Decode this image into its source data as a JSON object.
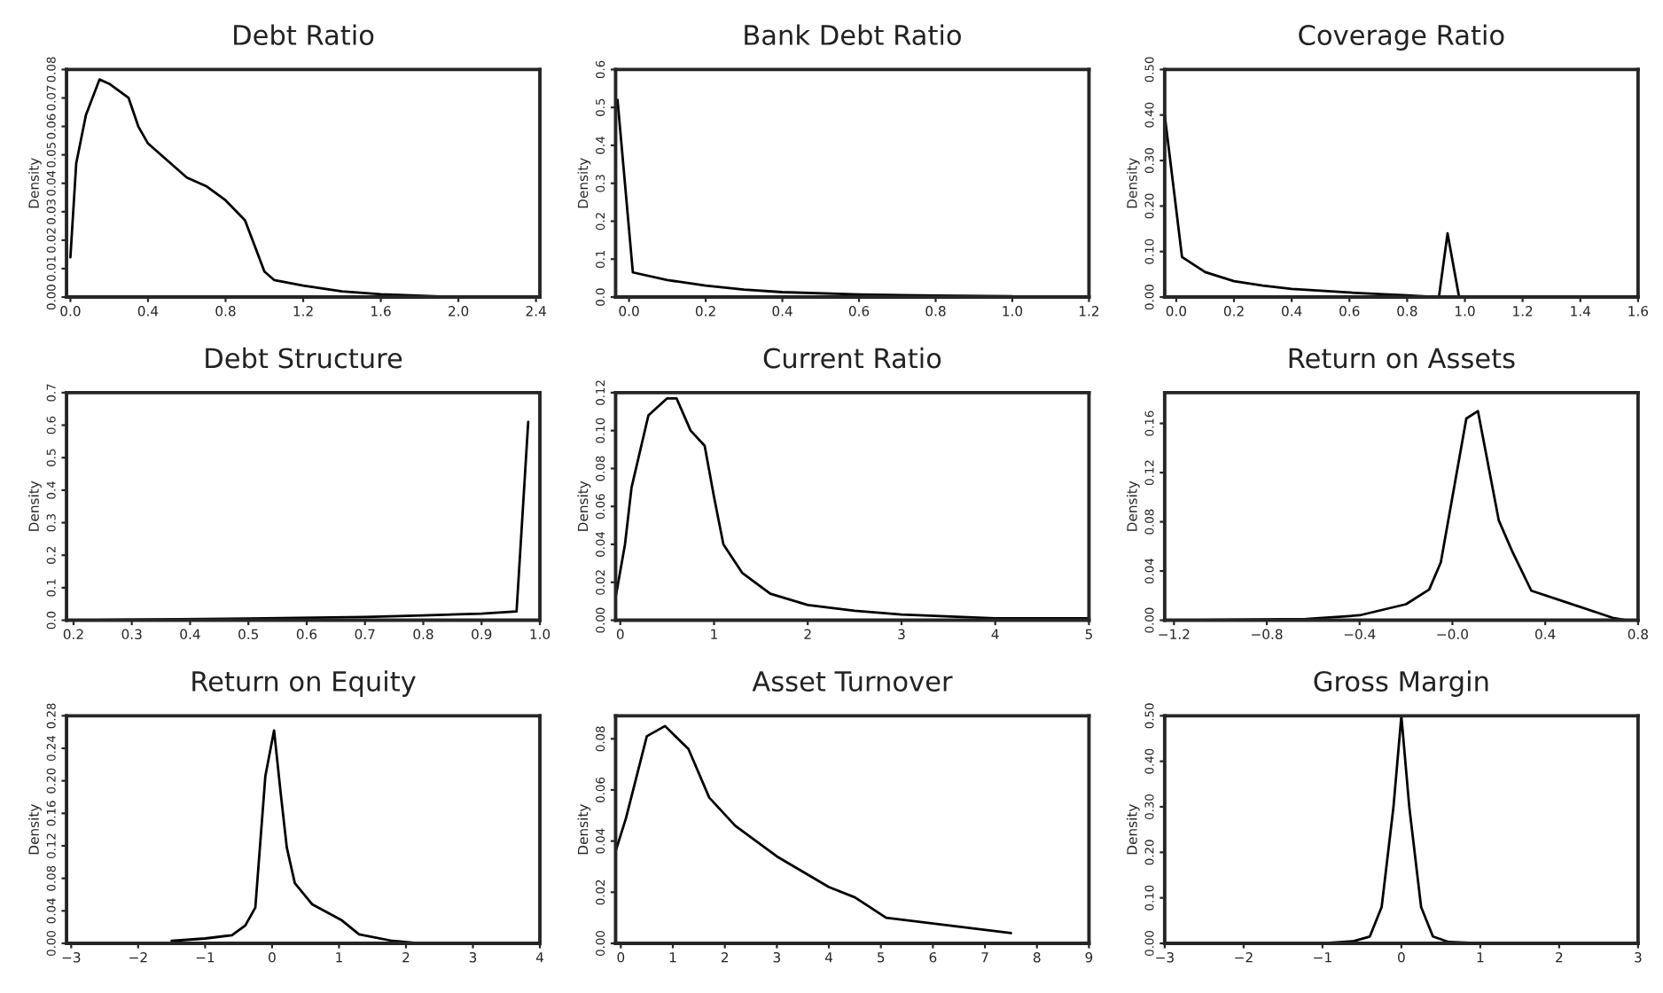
{
  "chart_data": [
    {
      "type": "line",
      "title": "Debt Ratio",
      "ylabel": "Density",
      "xlim": [
        -0.02,
        2.42
      ],
      "ylim": [
        0,
        0.08
      ],
      "xticks": [
        {
          "value": 0,
          "label": "0.0"
        },
        0.4,
        0.8,
        1.2,
        1.6,
        {
          "value": 2,
          "label": "2.0"
        },
        2.4
      ],
      "yticks": [
        {
          "value": 0,
          "label": "0.00"
        },
        0.01,
        0.02,
        0.03,
        0.04,
        0.05,
        0.06,
        0.07,
        0.08
      ],
      "series": [
        {
          "color": "#000000",
          "x": [
            0,
            0.03,
            0.08,
            0.15,
            0.2,
            0.3,
            0.35,
            0.4,
            0.5,
            0.6,
            0.7,
            0.8,
            0.9,
            0.95,
            1.0,
            1.05,
            1.2,
            1.4,
            1.6,
            2.0,
            2.4
          ],
          "values": [
            0.014,
            0.047,
            0.064,
            0.0765,
            0.075,
            0.07,
            0.06,
            0.054,
            0.048,
            0.042,
            0.039,
            0.034,
            0.027,
            0.018,
            0.009,
            0.006,
            0.004,
            0.002,
            0.001,
            0.0,
            0
          ]
        }
      ]
    },
    {
      "type": "line",
      "title": "Bank Debt Ratio",
      "ylabel": "Density",
      "xlim": [
        -0.035,
        1.2
      ],
      "ylim": [
        0,
        0.6
      ],
      "xticks": [
        {
          "value": 0,
          "label": "0.0"
        },
        0.2,
        0.4,
        0.6,
        0.8,
        {
          "value": 1,
          "label": "1.0"
        },
        1.2
      ],
      "yticks": [
        {
          "value": 0,
          "label": "0.0"
        },
        0.1,
        0.2,
        0.3,
        0.4,
        0.5,
        0.6
      ],
      "series": [
        {
          "color": "#000000",
          "x": [
            -0.03,
            0.01,
            0.1,
            0.2,
            0.3,
            0.4,
            0.6,
            0.8,
            1.0
          ],
          "values": [
            0.52,
            0.065,
            0.045,
            0.03,
            0.02,
            0.013,
            0.007,
            0.004,
            0.002
          ]
        }
      ]
    },
    {
      "type": "line",
      "title": "Coverage Ratio",
      "ylabel": "Density",
      "xlim": [
        -0.04,
        1.6
      ],
      "ylim": [
        0,
        0.5
      ],
      "xticks": [
        {
          "value": 0,
          "label": "0.0"
        },
        0.2,
        0.4,
        0.6,
        0.8,
        {
          "value": 1,
          "label": "1.0"
        },
        1.2,
        1.4,
        1.6
      ],
      "yticks": [
        {
          "value": 0,
          "label": "0.00"
        },
        {
          "value": 0.1,
          "label": "0.10"
        },
        {
          "value": 0.2,
          "label": "0.20"
        },
        {
          "value": 0.3,
          "label": "0.30"
        },
        {
          "value": 0.4,
          "label": "0.40"
        },
        {
          "value": 0.5,
          "label": "0.50"
        }
      ],
      "series": [
        {
          "color": "#000000",
          "x": [
            -0.04,
            0.02,
            0.1,
            0.2,
            0.3,
            0.4,
            0.6,
            0.8,
            0.91,
            0.94,
            0.98,
            1.6
          ],
          "values": [
            0.4,
            0.088,
            0.055,
            0.035,
            0.025,
            0.018,
            0.01,
            0.004,
            0.0,
            0.14,
            0.0,
            0.0
          ]
        }
      ]
    },
    {
      "type": "line",
      "title": "Debt Structure",
      "ylabel": "Density",
      "xlim": [
        0.188,
        1.0
      ],
      "ylim": [
        0,
        0.7
      ],
      "xticks": [
        0.2,
        0.3,
        0.4,
        0.5,
        0.6,
        0.7,
        0.8,
        0.9,
        {
          "value": 1,
          "label": "1.0"
        }
      ],
      "yticks": [
        {
          "value": 0,
          "label": "0.0"
        },
        0.1,
        0.2,
        0.3,
        0.4,
        0.5,
        0.6,
        0.7
      ],
      "series": [
        {
          "color": "#000000",
          "x": [
            0.2,
            0.3,
            0.5,
            0.7,
            0.8,
            0.9,
            0.96,
            0.98
          ],
          "values": [
            0.0,
            0.002,
            0.005,
            0.01,
            0.015,
            0.02,
            0.027,
            0.61
          ]
        }
      ]
    },
    {
      "type": "line",
      "title": "Current Ratio",
      "ylabel": "Density",
      "xlim": [
        -0.05,
        5
      ],
      "ylim": [
        0,
        0.12
      ],
      "xticks": [
        0,
        1,
        2,
        3,
        4,
        5
      ],
      "yticks": [
        {
          "value": 0,
          "label": "0.00"
        },
        0.02,
        0.04,
        0.06,
        0.08,
        {
          "value": 0.1,
          "label": "0.10"
        },
        0.12
      ],
      "series": [
        {
          "color": "#000000",
          "x": [
            -0.05,
            0.05,
            0.12,
            0.3,
            0.5,
            0.6,
            0.75,
            0.9,
            1.0,
            1.1,
            1.3,
            1.6,
            2.0,
            2.5,
            3,
            4,
            5
          ],
          "values": [
            0.012,
            0.04,
            0.07,
            0.108,
            0.117,
            0.117,
            0.1,
            0.092,
            0.065,
            0.04,
            0.025,
            0.014,
            0.008,
            0.005,
            0.003,
            0.001,
            0.001
          ]
        }
      ]
    },
    {
      "type": "line",
      "title": "Return on Assets",
      "ylabel": "Density",
      "xlim": [
        -1.24,
        0.8
      ],
      "ylim": [
        0,
        0.185
      ],
      "xticks": [
        {
          "value": -1.2,
          "label": "−1.2"
        },
        {
          "value": -0.8,
          "label": "−0.8"
        },
        {
          "value": -0.4,
          "label": "−0.4"
        },
        {
          "value": 0,
          "label": "−0.0"
        },
        0.4,
        0.8
      ],
      "yticks": [
        {
          "value": 0,
          "label": "0.00"
        },
        0.04,
        0.08,
        0.12,
        0.16
      ],
      "series": [
        {
          "color": "#000000",
          "x": [
            -1.2,
            -0.63,
            -0.4,
            -0.2,
            -0.1,
            -0.05,
            0.06,
            0.11,
            0.2,
            0.26,
            0.34,
            0.5,
            0.69,
            0.75
          ],
          "values": [
            0,
            0.001,
            0.004,
            0.013,
            0.025,
            0.047,
            0.164,
            0.17,
            0.081,
            0.055,
            0.024,
            0.014,
            0.002,
            0
          ]
        }
      ]
    },
    {
      "type": "line",
      "title": "Return on Equity",
      "ylabel": "Density",
      "xlim": [
        -3.07,
        4
      ],
      "ylim": [
        0,
        0.28
      ],
      "xticks": [
        {
          "value": -3,
          "label": "−3"
        },
        {
          "value": -2,
          "label": "−2"
        },
        {
          "value": -1,
          "label": "−1"
        },
        0,
        1,
        2,
        3,
        4
      ],
      "yticks": [
        {
          "value": 0,
          "label": "0.00"
        },
        0.04,
        0.08,
        0.12,
        0.16,
        {
          "value": 0.2,
          "label": "0.20"
        },
        0.24,
        0.28
      ],
      "series": [
        {
          "color": "#000000",
          "x": [
            -1.5,
            -1,
            -0.6,
            -0.4,
            -0.25,
            -0.1,
            0.03,
            0.13,
            0.22,
            0.34,
            0.6,
            1.03,
            1.3,
            1.8,
            2.2
          ],
          "values": [
            0.003,
            0.006,
            0.01,
            0.022,
            0.044,
            0.206,
            0.262,
            0.184,
            0.118,
            0.074,
            0.048,
            0.029,
            0.011,
            0.003,
            0
          ]
        }
      ]
    },
    {
      "type": "line",
      "title": "Asset Turnover",
      "ylabel": "Density",
      "xlim": [
        -0.1,
        9
      ],
      "ylim": [
        0,
        0.089
      ],
      "xticks": [
        0,
        1,
        2,
        3,
        4,
        5,
        6,
        7,
        8,
        9
      ],
      "yticks": [
        {
          "value": 0,
          "label": "0.00"
        },
        0.02,
        0.04,
        0.06,
        0.08
      ],
      "series": [
        {
          "color": "#000000",
          "x": [
            -0.1,
            0.1,
            0.2,
            0.5,
            0.85,
            1.3,
            1.7,
            2.2,
            3,
            4,
            4.5,
            5.1,
            7.5
          ],
          "values": [
            0.036,
            0.049,
            0.057,
            0.081,
            0.085,
            0.076,
            0.057,
            0.046,
            0.034,
            0.022,
            0.018,
            0.01,
            0.004
          ]
        }
      ]
    },
    {
      "type": "line",
      "title": "Gross Margin",
      "ylabel": "Density",
      "xlim": [
        -3,
        3
      ],
      "ylim": [
        0,
        0.5
      ],
      "xticks": [
        {
          "value": -3,
          "label": "−3"
        },
        {
          "value": -2,
          "label": "−2"
        },
        {
          "value": -1,
          "label": "−1"
        },
        0,
        1,
        2,
        3
      ],
      "yticks": [
        {
          "value": 0,
          "label": "0.00"
        },
        {
          "value": 0.1,
          "label": "0.10"
        },
        {
          "value": 0.2,
          "label": "0.20"
        },
        {
          "value": 0.3,
          "label": "0.30"
        },
        {
          "value": 0.4,
          "label": "0.40"
        },
        {
          "value": 0.5,
          "label": "0.50"
        }
      ],
      "series": [
        {
          "color": "#000000",
          "x": [
            -1,
            -0.6,
            -0.4,
            -0.25,
            -0.1,
            0,
            0.1,
            0.25,
            0.4,
            0.6,
            1
          ],
          "values": [
            0,
            0.005,
            0.015,
            0.08,
            0.3,
            0.5,
            0.3,
            0.08,
            0.015,
            0.003,
            0
          ]
        }
      ]
    }
  ]
}
